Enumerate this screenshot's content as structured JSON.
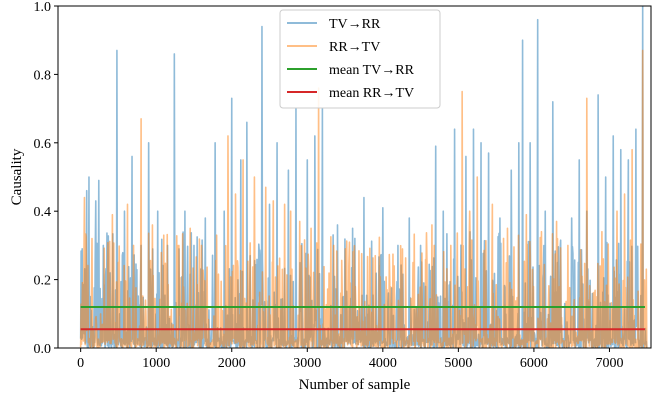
{
  "chart_data": {
    "type": "line",
    "title": "",
    "xlabel": "Number of sample",
    "ylabel": "Causality",
    "xlim": [
      -300,
      7550
    ],
    "ylim": [
      0.0,
      1.0
    ],
    "x_ticks": [
      0,
      1000,
      2000,
      3000,
      4000,
      5000,
      6000,
      7000
    ],
    "y_ticks": [
      0.0,
      0.2,
      0.4,
      0.6,
      0.8,
      1.0
    ],
    "x_tick_labels": [
      "0",
      "1000",
      "2000",
      "3000",
      "4000",
      "5000",
      "6000",
      "7000"
    ],
    "y_tick_labels": [
      "0.0",
      "0.2",
      "0.4",
      "0.6",
      "0.8",
      "1.0"
    ],
    "grid": false,
    "legend_position": "top-center",
    "sample_count": 7500,
    "series": [
      {
        "name": "TV→RR",
        "color": "#1f77b4",
        "opacity": 0.5,
        "kind": "signal",
        "peaks": [
          [
            20,
            0.29
          ],
          [
            80,
            0.46
          ],
          [
            110,
            0.5
          ],
          [
            200,
            0.43
          ],
          [
            240,
            0.49
          ],
          [
            300,
            0.3
          ],
          [
            480,
            0.87
          ],
          [
            580,
            0.4
          ],
          [
            680,
            0.56
          ],
          [
            800,
            0.3
          ],
          [
            900,
            0.6
          ],
          [
            1020,
            0.4
          ],
          [
            1150,
            0.3
          ],
          [
            1240,
            0.86
          ],
          [
            1380,
            0.4
          ],
          [
            1500,
            0.3
          ],
          [
            1650,
            0.38
          ],
          [
            1780,
            0.6
          ],
          [
            1900,
            0.4
          ],
          [
            2000,
            0.73
          ],
          [
            2120,
            0.55
          ],
          [
            2200,
            0.66
          ],
          [
            2400,
            0.94
          ],
          [
            2500,
            0.42
          ],
          [
            2600,
            0.6
          ],
          [
            2750,
            0.52
          ],
          [
            2850,
            0.7
          ],
          [
            3000,
            0.55
          ],
          [
            3100,
            0.62
          ],
          [
            3200,
            0.7
          ],
          [
            3400,
            0.36
          ],
          [
            3600,
            0.35
          ],
          [
            3750,
            0.44
          ],
          [
            4000,
            0.41
          ],
          [
            4200,
            0.3
          ],
          [
            4350,
            0.38
          ],
          [
            4500,
            0.3
          ],
          [
            4700,
            0.59
          ],
          [
            4800,
            0.4
          ],
          [
            4950,
            0.64
          ],
          [
            5100,
            0.56
          ],
          [
            5200,
            0.64
          ],
          [
            5300,
            0.6
          ],
          [
            5400,
            0.57
          ],
          [
            5550,
            0.38
          ],
          [
            5700,
            0.52
          ],
          [
            5800,
            0.6
          ],
          [
            5850,
            0.9
          ],
          [
            5950,
            0.6
          ],
          [
            6050,
            0.96
          ],
          [
            6150,
            0.4
          ],
          [
            6250,
            0.72
          ],
          [
            6350,
            0.3
          ],
          [
            6500,
            0.38
          ],
          [
            6600,
            0.55
          ],
          [
            6700,
            0.4
          ],
          [
            6850,
            0.74
          ],
          [
            6950,
            0.5
          ],
          [
            7050,
            0.62
          ],
          [
            7150,
            0.58
          ],
          [
            7250,
            0.55
          ],
          [
            7350,
            0.64
          ],
          [
            7440,
            1.0
          ]
        ]
      },
      {
        "name": "RR→TV",
        "color": "#ff7f0e",
        "opacity": 0.5,
        "kind": "signal",
        "peaks": [
          [
            50,
            0.44
          ],
          [
            150,
            0.32
          ],
          [
            420,
            0.39
          ],
          [
            620,
            0.42
          ],
          [
            700,
            0.3
          ],
          [
            800,
            0.67
          ],
          [
            950,
            0.36
          ],
          [
            1100,
            0.33
          ],
          [
            1300,
            0.3
          ],
          [
            1450,
            0.35
          ],
          [
            1600,
            0.3
          ],
          [
            1800,
            0.33
          ],
          [
            1950,
            0.62
          ],
          [
            2050,
            0.45
          ],
          [
            2150,
            0.55
          ],
          [
            2300,
            0.5
          ],
          [
            2450,
            0.47
          ],
          [
            2550,
            0.43
          ],
          [
            2700,
            0.42
          ],
          [
            2780,
            0.4
          ],
          [
            2900,
            0.37
          ],
          [
            3050,
            0.35
          ],
          [
            3150,
            0.76
          ],
          [
            3350,
            0.3
          ],
          [
            3550,
            0.24
          ],
          [
            3900,
            0.27
          ],
          [
            4150,
            0.24
          ],
          [
            4400,
            0.25
          ],
          [
            4650,
            0.36
          ],
          [
            4900,
            0.3
          ],
          [
            5050,
            0.75
          ],
          [
            5150,
            0.4
          ],
          [
            5250,
            0.5
          ],
          [
            5450,
            0.42
          ],
          [
            5650,
            0.35
          ],
          [
            5900,
            0.39
          ],
          [
            6100,
            0.34
          ],
          [
            6300,
            0.37
          ],
          [
            6450,
            0.3
          ],
          [
            6700,
            0.73
          ],
          [
            6900,
            0.34
          ],
          [
            7100,
            0.4
          ],
          [
            7200,
            0.45
          ],
          [
            7300,
            0.58
          ],
          [
            7440,
            0.87
          ]
        ]
      },
      {
        "name": "mean TV→RR",
        "color": "#2ca02c",
        "kind": "mean",
        "value": 0.12,
        "x_range": [
          0,
          7470
        ]
      },
      {
        "name": "mean RR→TV",
        "color": "#d62728",
        "kind": "mean",
        "value": 0.055,
        "x_range": [
          0,
          7470
        ]
      }
    ]
  }
}
